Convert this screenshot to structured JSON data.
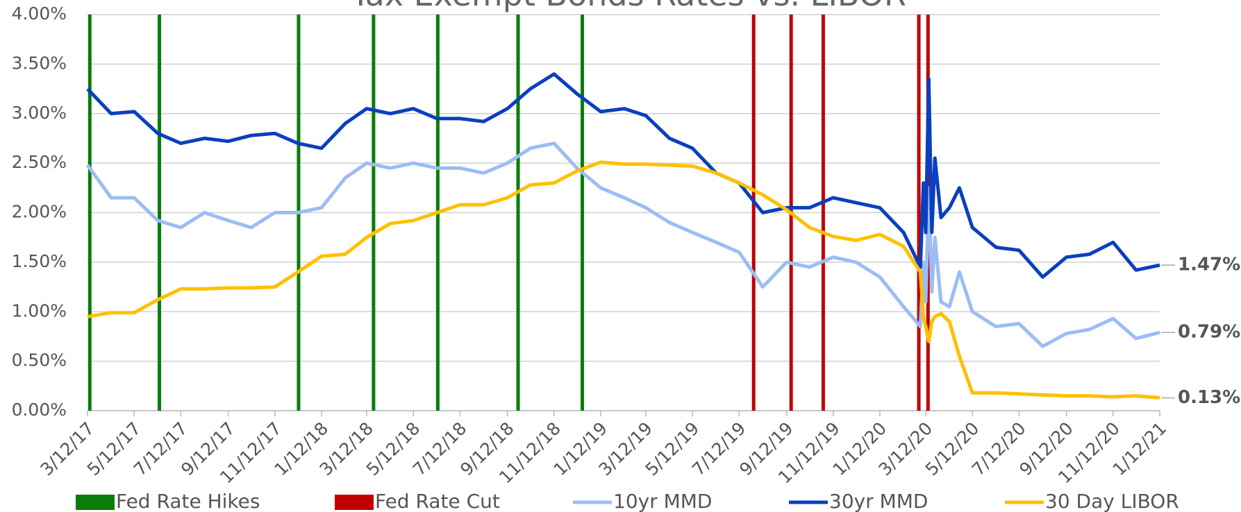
{
  "chart_data": {
    "type": "line",
    "title": "Tax Exempt Bonds Rates vs. LIBOR",
    "x": [
      "3/12/17",
      "4/12/17",
      "5/12/17",
      "6/12/17",
      "7/12/17",
      "8/12/17",
      "9/12/17",
      "10/12/17",
      "11/12/17",
      "12/12/17",
      "1/12/18",
      "2/12/18",
      "3/12/18",
      "4/12/18",
      "5/12/18",
      "6/12/18",
      "7/12/18",
      "8/12/18",
      "9/12/18",
      "10/12/18",
      "11/12/18",
      "12/12/18",
      "1/12/19",
      "2/12/19",
      "3/12/19",
      "4/12/19",
      "5/12/19",
      "6/12/19",
      "7/12/19",
      "8/12/19",
      "9/12/19",
      "10/12/19",
      "11/12/19",
      "12/12/19",
      "1/12/20",
      "2/12/20",
      "3/5/20",
      "3/9/20",
      "3/12/20",
      "3/16/20",
      "3/20/20",
      "3/24/20",
      "4/1/20",
      "4/12/20",
      "4/25/20",
      "5/12/20",
      "6/12/20",
      "7/12/20",
      "8/12/20",
      "9/12/20",
      "10/12/20",
      "11/12/20",
      "12/12/20",
      "1/12/21"
    ],
    "series": [
      {
        "name": "10yr MMD",
        "color": "#9dbcf5",
        "label_color": "#7fa3e0",
        "end_label": "0.79%",
        "values": [
          2.48,
          2.15,
          2.15,
          1.92,
          1.85,
          2.0,
          1.92,
          1.85,
          2.0,
          2.0,
          2.05,
          2.35,
          2.5,
          2.45,
          2.5,
          2.45,
          2.45,
          2.4,
          2.5,
          2.65,
          2.7,
          2.45,
          2.25,
          2.15,
          2.05,
          1.9,
          1.8,
          1.7,
          1.6,
          1.25,
          1.5,
          1.45,
          1.55,
          1.5,
          1.35,
          1.05,
          0.85,
          1.5,
          1.1,
          2.25,
          1.2,
          1.75,
          1.1,
          1.05,
          1.4,
          1.0,
          0.85,
          0.88,
          0.65,
          0.78,
          0.82,
          0.93,
          0.73,
          0.79
        ]
      },
      {
        "name": "30yr MMD",
        "color": "#0a3fbf",
        "label_color": "#102060",
        "end_label": "1.47%",
        "values": [
          3.25,
          3.0,
          3.02,
          2.8,
          2.7,
          2.75,
          2.72,
          2.78,
          2.8,
          2.7,
          2.65,
          2.9,
          3.05,
          3.0,
          3.05,
          2.95,
          2.95,
          2.92,
          3.05,
          3.25,
          3.4,
          3.2,
          3.02,
          3.05,
          2.98,
          2.75,
          2.65,
          2.4,
          2.3,
          2.0,
          2.05,
          2.05,
          2.15,
          2.1,
          2.05,
          1.8,
          1.45,
          2.3,
          1.8,
          3.35,
          1.8,
          2.55,
          1.95,
          2.05,
          2.25,
          1.85,
          1.65,
          1.62,
          1.35,
          1.55,
          1.58,
          1.7,
          1.42,
          1.47
        ]
      },
      {
        "name": "30 Day LIBOR",
        "color": "#ffc000",
        "label_color": "#ffc000",
        "end_label": "0.13%",
        "values": [
          0.95,
          0.99,
          0.99,
          1.12,
          1.23,
          1.23,
          1.24,
          1.24,
          1.25,
          1.4,
          1.56,
          1.58,
          1.75,
          1.89,
          1.92,
          2.0,
          2.08,
          2.08,
          2.15,
          2.28,
          2.3,
          2.42,
          2.51,
          2.49,
          2.49,
          2.48,
          2.47,
          2.4,
          2.3,
          2.18,
          2.03,
          1.85,
          1.76,
          1.72,
          1.78,
          1.66,
          1.4,
          0.95,
          0.85,
          0.7,
          0.9,
          0.95,
          0.98,
          0.9,
          0.55,
          0.18,
          0.18,
          0.17,
          0.16,
          0.15,
          0.15,
          0.14,
          0.15,
          0.13
        ]
      }
    ],
    "events": [
      {
        "name": "Fed Rate Hikes",
        "color": "#0a7d0a",
        "dates": [
          "3/15/17",
          "6/14/17",
          "12/13/17",
          "3/21/18",
          "6/13/18",
          "9/26/18",
          "12/19/18"
        ]
      },
      {
        "name": "Fed Rate Cut",
        "color": "#c00000",
        "dates": [
          "7/31/19",
          "9/18/19",
          "10/30/19",
          "3/3/20",
          "3/15/20"
        ]
      }
    ],
    "xlim": [
      "3/12/17",
      "1/12/21"
    ],
    "xticks": [
      "3/12/17",
      "5/12/17",
      "7/12/17",
      "9/12/17",
      "11/12/17",
      "1/12/18",
      "3/12/18",
      "5/12/18",
      "7/12/18",
      "9/12/18",
      "11/12/18",
      "1/12/19",
      "3/12/19",
      "5/12/19",
      "7/12/19",
      "9/12/19",
      "11/12/19",
      "1/12/20",
      "3/12/20",
      "5/12/20",
      "7/12/20",
      "9/12/20",
      "11/12/20",
      "1/12/21"
    ],
    "ylim": [
      0,
      4
    ],
    "yticks": [
      {
        "value": 0,
        "label": "0.00%"
      },
      {
        "value": 0.5,
        "label": "0.50%"
      },
      {
        "value": 1,
        "label": "1.00%"
      },
      {
        "value": 1.5,
        "label": "1.50%"
      },
      {
        "value": 2,
        "label": "2.00%"
      },
      {
        "value": 2.5,
        "label": "2.50%"
      },
      {
        "value": 3,
        "label": "3.00%"
      },
      {
        "value": 3.5,
        "label": "3.50%"
      },
      {
        "value": 4,
        "label": "4.00%"
      }
    ],
    "grid": true,
    "legend": "bottom"
  }
}
